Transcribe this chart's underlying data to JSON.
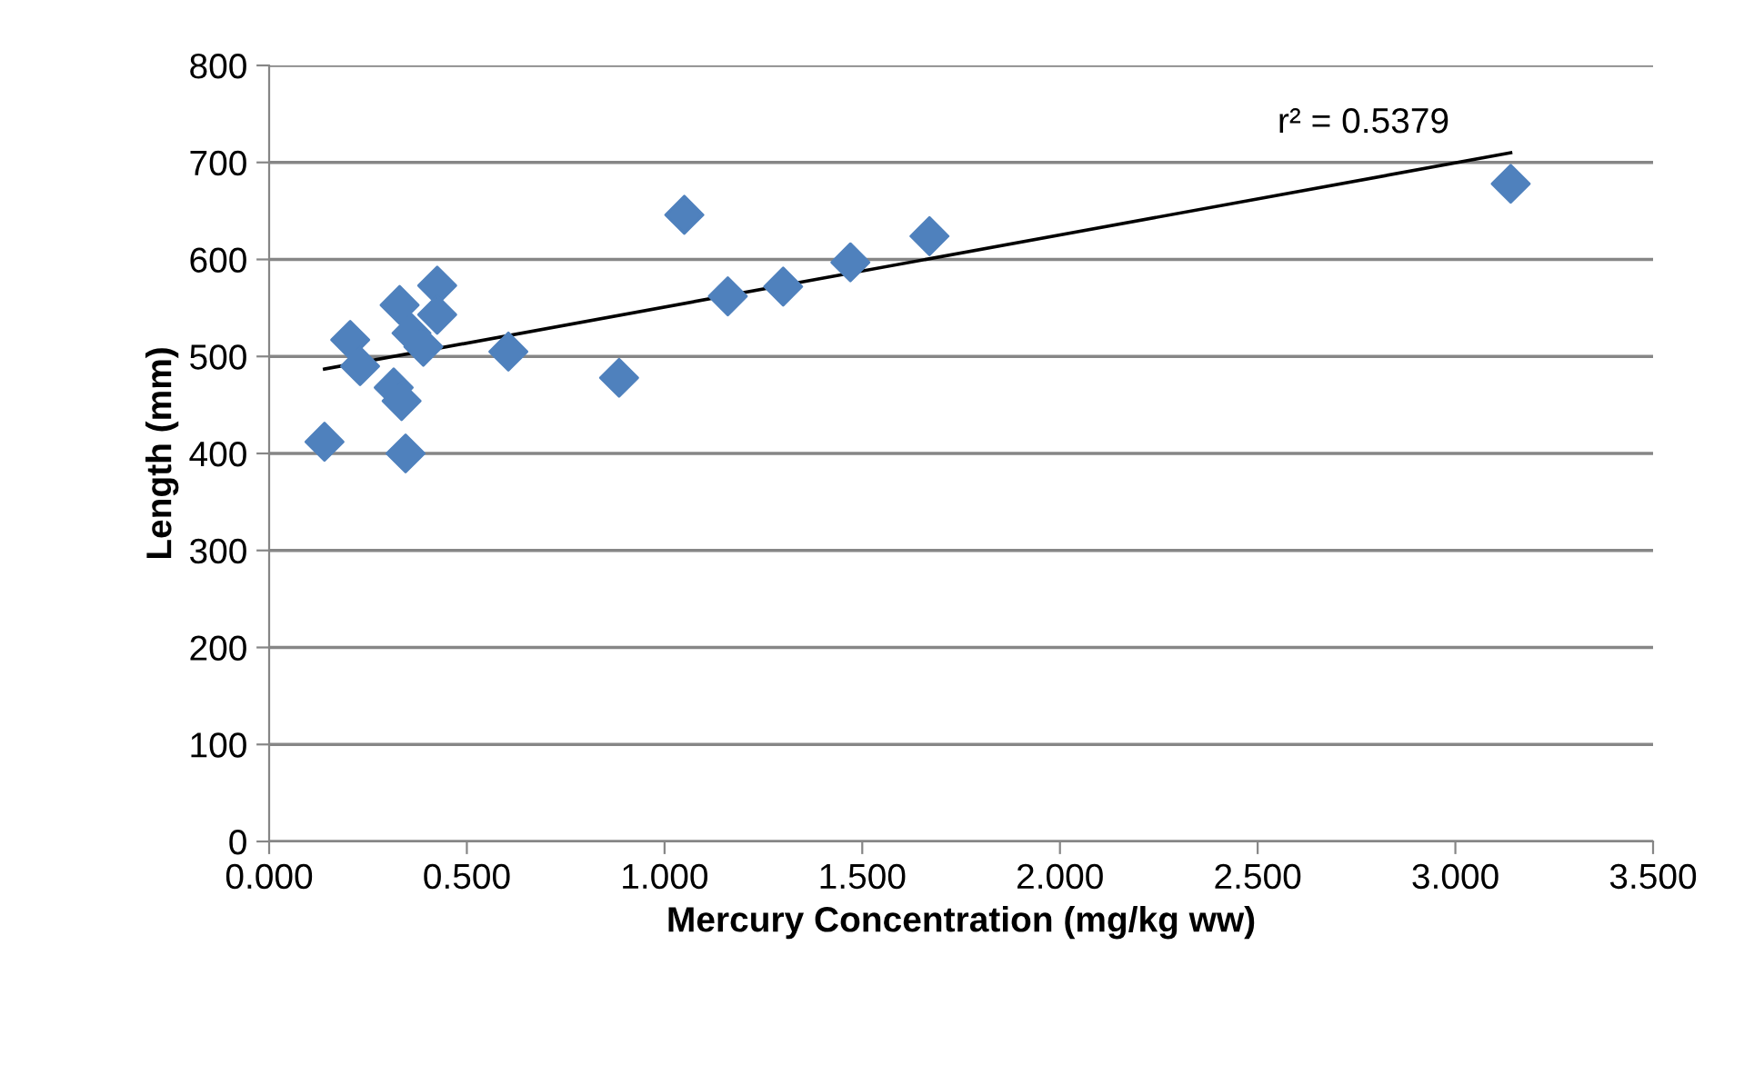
{
  "chart_data": {
    "type": "scatter",
    "xlabel": "Mercury Concentration (mg/kg ww)",
    "ylabel": "Length (mm)",
    "series": [
      {
        "color": "#4f81bd",
        "marker": "diamond",
        "x": [
          0.14,
          0.205,
          0.23,
          0.315,
          0.33,
          0.335,
          0.345,
          0.36,
          0.39,
          0.425,
          0.425,
          0.605,
          0.885,
          1.05,
          1.16,
          1.3,
          1.47,
          1.67,
          3.14
        ],
        "values": [
          412,
          517,
          490,
          468,
          553,
          454,
          400,
          524,
          510,
          573,
          543,
          505,
          478,
          646,
          562,
          572,
          597,
          624,
          678
        ]
      },
      {
        "type": "line",
        "color": "#000000",
        "marker": "none",
        "x": [
          0.14,
          3.14
        ],
        "values": [
          487,
          710
        ]
      }
    ],
    "annotations": [
      "r² = 0.5379"
    ],
    "xlim": [
      0,
      3.5
    ],
    "xticks": [
      {
        "value": 0,
        "label": "0.000"
      },
      {
        "value": 0.5,
        "label": "0.500"
      },
      {
        "value": 1,
        "label": "1.000"
      },
      {
        "value": 1.5,
        "label": "1.500"
      },
      {
        "value": 2,
        "label": "2.000"
      },
      {
        "value": 2.5,
        "label": "2.500"
      },
      {
        "value": 3,
        "label": "3.000"
      },
      {
        "value": 3.5,
        "label": "3.500"
      }
    ],
    "ylim": [
      0,
      800
    ],
    "yticks": [
      0,
      100,
      200,
      300,
      400,
      500,
      600,
      700,
      800
    ],
    "grid": "y",
    "legend": false
  }
}
